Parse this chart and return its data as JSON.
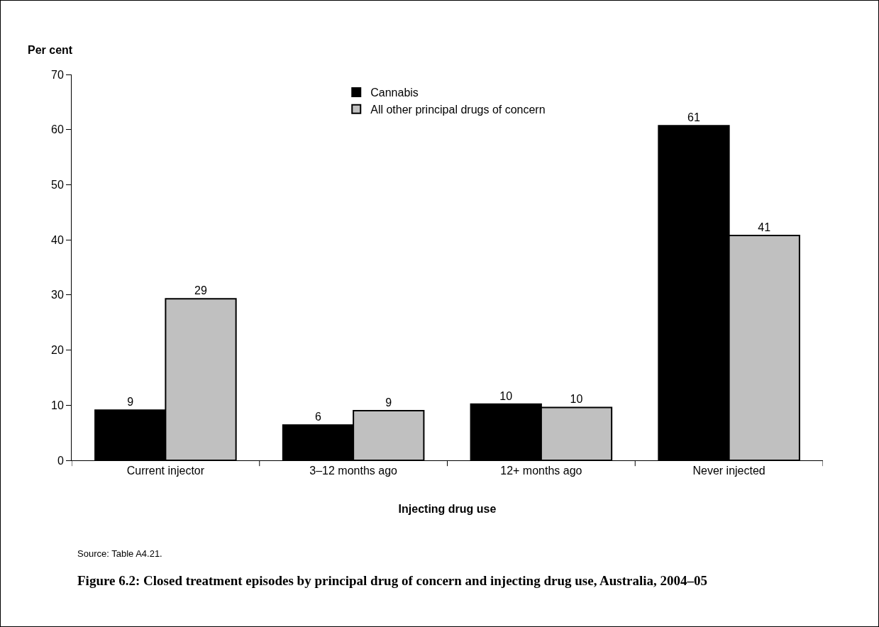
{
  "chart_data": {
    "type": "bar",
    "title": "Figure 6.2: Closed treatment episodes by principal drug of concern and injecting drug use, Australia, 2004–05",
    "xlabel": "Injecting drug use",
    "ylabel": "Per cent",
    "annotations": [
      "Source: Table A4.21."
    ],
    "categories": [
      "Current injector",
      "3–12 months ago",
      "12+ months ago",
      "Never injected"
    ],
    "series": [
      {
        "name": "Cannabis",
        "color": "#000000",
        "values": [
          9.1,
          6.4,
          10.2,
          60.7
        ],
        "value_labels": [
          "9",
          "6",
          "10",
          "61"
        ]
      },
      {
        "name": "All other principal drugs of concern",
        "color": "#c0c0c0",
        "values": [
          29.3,
          9.0,
          9.6,
          40.8
        ],
        "value_labels": [
          "29",
          "9",
          "10",
          "41"
        ]
      }
    ],
    "ylim": [
      0,
      70
    ],
    "yticks": [
      0,
      10,
      20,
      30,
      40,
      50,
      60,
      70
    ],
    "grid": false,
    "legend": "top"
  }
}
